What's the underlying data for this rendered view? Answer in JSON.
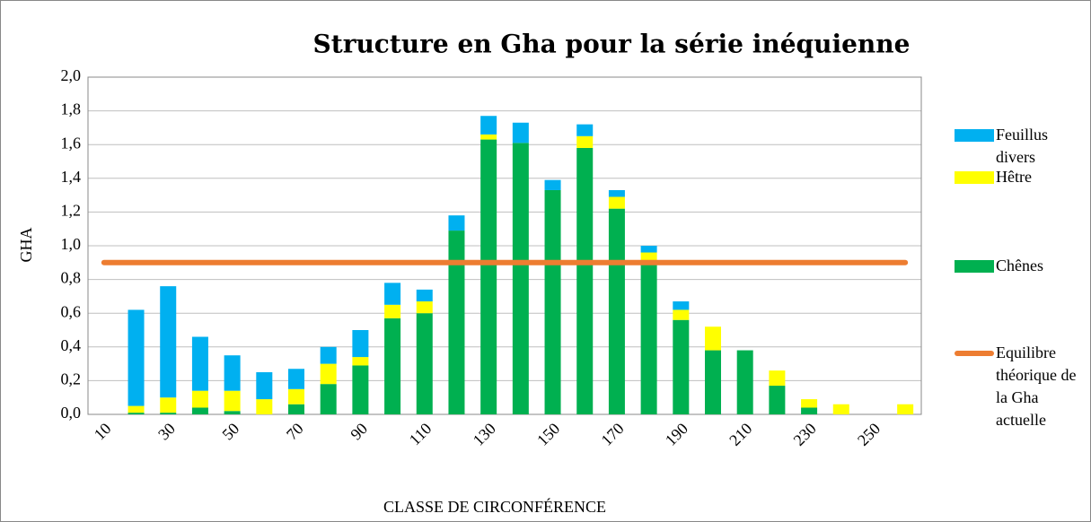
{
  "chart_data": {
    "type": "bar",
    "stacked": true,
    "title": "Structure en Gha pour la série inéquienne",
    "xlabel": "CLASSE DE CIRCONFÉRENCE",
    "ylabel": "GHA",
    "categories": [
      "10",
      null,
      "30",
      null,
      "50",
      null,
      "70",
      null,
      "90",
      null,
      "110",
      null,
      "130",
      null,
      "150",
      null,
      "170",
      null,
      "190",
      null,
      "210",
      null,
      "230",
      null,
      "250",
      null
    ],
    "series": [
      {
        "name": "Chênes",
        "color": "#00b050",
        "values": [
          0,
          0.01,
          0.01,
          0.04,
          0.02,
          0,
          0.06,
          0.18,
          0.29,
          0.57,
          0.6,
          1.09,
          1.63,
          1.61,
          1.33,
          1.58,
          1.22,
          0.91,
          0.56,
          0.38,
          0.38,
          0.17,
          0.04,
          0,
          0,
          0
        ]
      },
      {
        "name": "Hêtre",
        "color": "#ffff00",
        "values": [
          0,
          0.04,
          0.09,
          0.1,
          0.12,
          0.09,
          0.09,
          0.12,
          0.05,
          0.08,
          0.07,
          0,
          0.03,
          0,
          0,
          0.07,
          0.07,
          0.05,
          0.06,
          0.14,
          0,
          0.09,
          0.05,
          0.06,
          0,
          0.06
        ]
      },
      {
        "name": "Feuillus divers",
        "color": "#00b0f0",
        "values": [
          0,
          0.57,
          0.66,
          0.32,
          0.21,
          0.16,
          0.12,
          0.1,
          0.16,
          0.13,
          0.07,
          0.09,
          0.11,
          0.12,
          0.06,
          0.07,
          0.04,
          0.04,
          0.05,
          0,
          0,
          0,
          0,
          0,
          0,
          0
        ]
      },
      {
        "name": "Equilibre théorique de la Gha actuelle",
        "color": "#ed7d31",
        "type": "line",
        "values": [
          0.9,
          0.9,
          0.9,
          0.9,
          0.9,
          0.9,
          0.9,
          0.9,
          0.9,
          0.9,
          0.9,
          0.9,
          0.9,
          0.9,
          0.9,
          0.9,
          0.9,
          0.9,
          0.9,
          0.9,
          0.9,
          0.9,
          0.9,
          0.9,
          0.9,
          0.9
        ]
      }
    ],
    "ylim": [
      0,
      2
    ],
    "yticks": [
      {
        "value": 0,
        "label": "0,0"
      },
      {
        "value": 0.2,
        "label": "0,2"
      },
      {
        "value": 0.4,
        "label": "0,4"
      },
      {
        "value": 0.6,
        "label": "0,6"
      },
      {
        "value": 0.8,
        "label": "0,8"
      },
      {
        "value": 1,
        "label": "1,0"
      },
      {
        "value": 1.2,
        "label": "1,2"
      },
      {
        "value": 1.4,
        "label": "1,4"
      },
      {
        "value": 1.6,
        "label": "1,6"
      },
      {
        "value": 1.8,
        "label": "1,8"
      },
      {
        "value": 2,
        "label": "2,0"
      }
    ],
    "grid": true,
    "legend": "right"
  }
}
